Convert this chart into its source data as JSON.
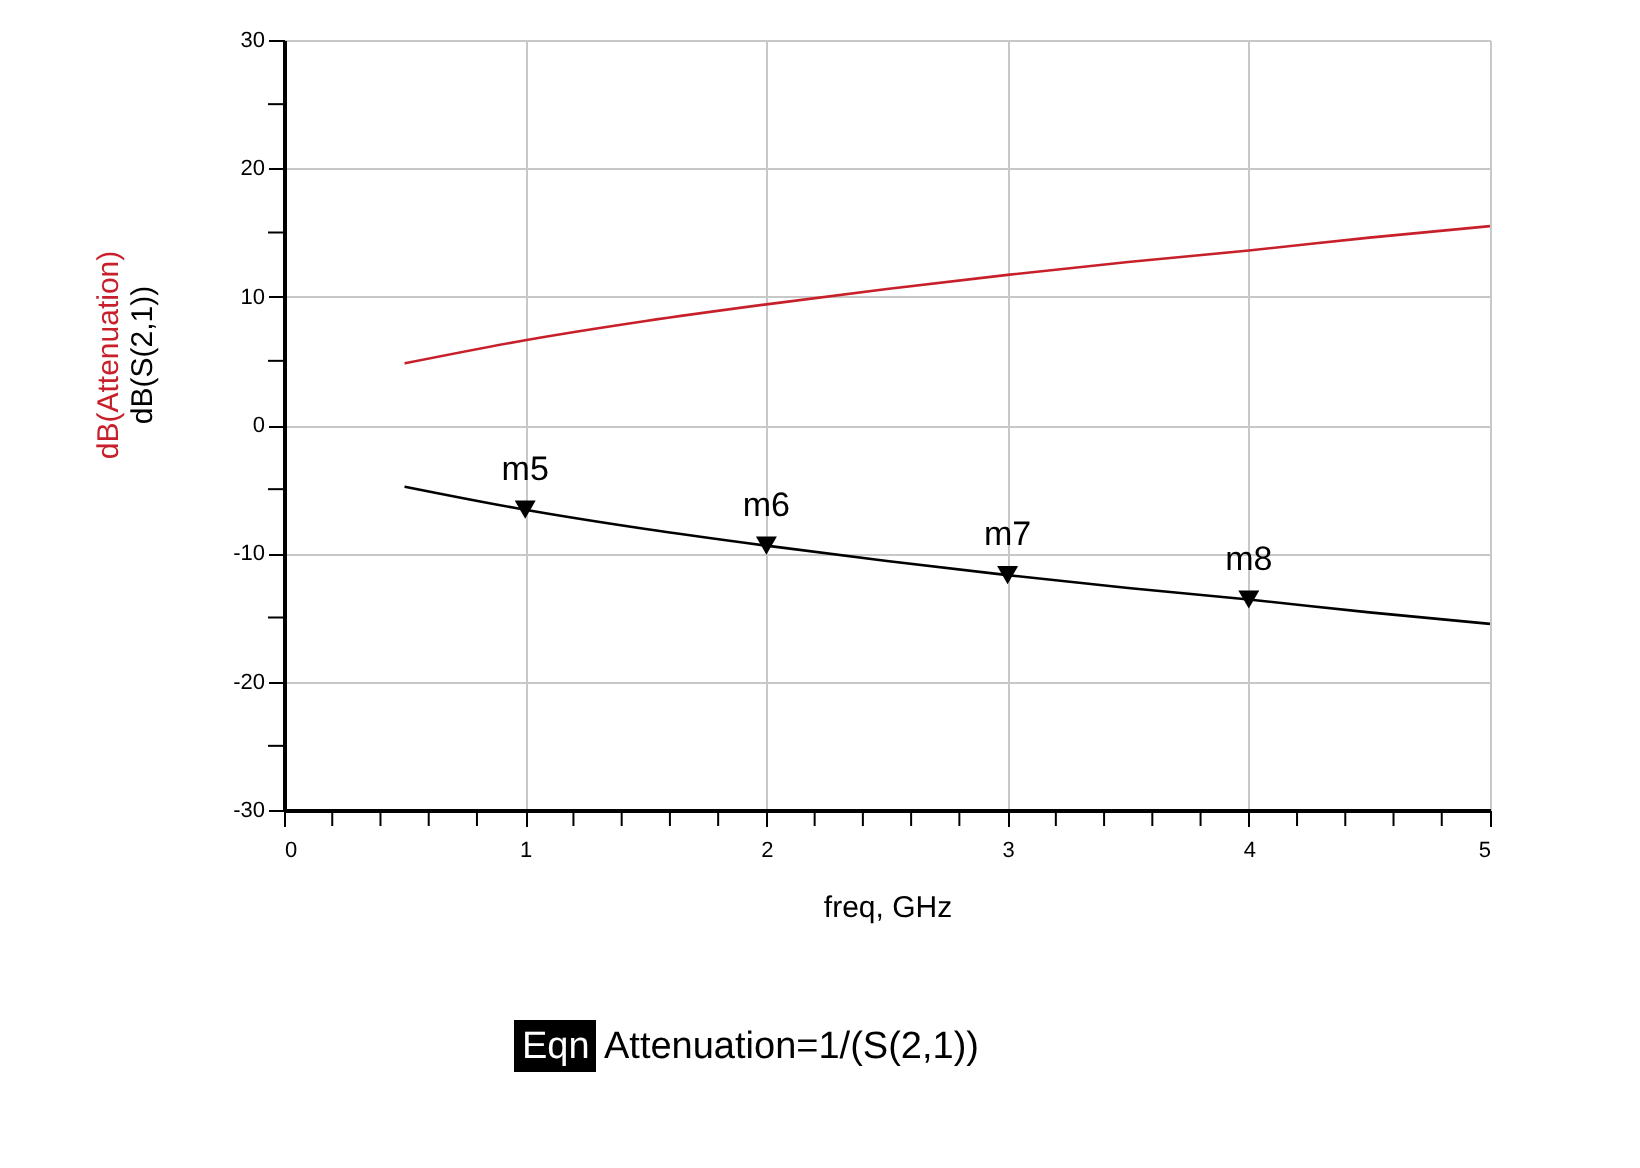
{
  "chart_data": {
    "type": "line",
    "x": [
      0.5,
      1,
      1.5,
      2,
      2.5,
      3,
      3.5,
      4,
      4.5,
      5
    ],
    "series": [
      {
        "name": "dB(Attenuation)",
        "color": "#c8202a",
        "values": [
          4.8,
          6.6,
          8.1,
          9.4,
          10.6,
          11.7,
          12.7,
          13.6,
          14.6,
          15.5
        ]
      },
      {
        "name": "dB(S(2,1))",
        "color": "#000000",
        "values": [
          -4.8,
          -6.6,
          -8.1,
          -9.4,
          -10.6,
          -11.7,
          -12.7,
          -13.6,
          -14.6,
          -15.5
        ]
      },
      {
        "type": "scatter",
        "marker": "triangle",
        "color": "#000000",
        "x": [
          1,
          2,
          3,
          4
        ],
        "values": [
          -6.6,
          -9.4,
          -11.7,
          -13.6
        ]
      }
    ],
    "xlabel": "freq, GHz",
    "xlim": [
      0,
      5
    ],
    "xticks": [
      0,
      {
        "value": 0.2,
        "label": null
      },
      {
        "value": 0.4,
        "label": null
      },
      {
        "value": 0.6,
        "label": null
      },
      {
        "value": 0.8,
        "label": null
      },
      1,
      {
        "value": 1.2,
        "label": null
      },
      {
        "value": 1.4,
        "label": null
      },
      {
        "value": 1.6,
        "label": null
      },
      {
        "value": 1.8,
        "label": null
      },
      2,
      {
        "value": 2.2,
        "label": null
      },
      {
        "value": 2.4,
        "label": null
      },
      {
        "value": 2.6,
        "label": null
      },
      {
        "value": 2.8,
        "label": null
      },
      3,
      {
        "value": 3.2,
        "label": null
      },
      {
        "value": 3.4,
        "label": null
      },
      {
        "value": 3.6,
        "label": null
      },
      {
        "value": 3.8,
        "label": null
      },
      4,
      {
        "value": 4.2,
        "label": null
      },
      {
        "value": 4.4,
        "label": null
      },
      {
        "value": 4.6,
        "label": null
      },
      {
        "value": 4.8,
        "label": null
      },
      5
    ],
    "ylim": [
      -30,
      30
    ],
    "yticks": [
      -30,
      {
        "value": -25,
        "label": null
      },
      -20,
      {
        "value": -15,
        "label": null
      },
      -10,
      {
        "value": -5,
        "label": null
      },
      0,
      {
        "value": 5,
        "label": null
      },
      10,
      {
        "value": 15,
        "label": null
      },
      20,
      {
        "value": 25,
        "label": null
      },
      30
    ],
    "grid": true,
    "line_style": "solid",
    "marker": "none",
    "annotations": [
      {
        "text": "m5",
        "x": 1,
        "y": -6.6
      },
      {
        "text": "m6",
        "x": 2,
        "y": -9.4
      },
      {
        "text": "m7",
        "x": 3,
        "y": -11.7
      },
      {
        "text": "m8",
        "x": 4,
        "y": -13.6
      },
      "Eqn",
      "Attenuation=1/(S(2,1))"
    ]
  }
}
